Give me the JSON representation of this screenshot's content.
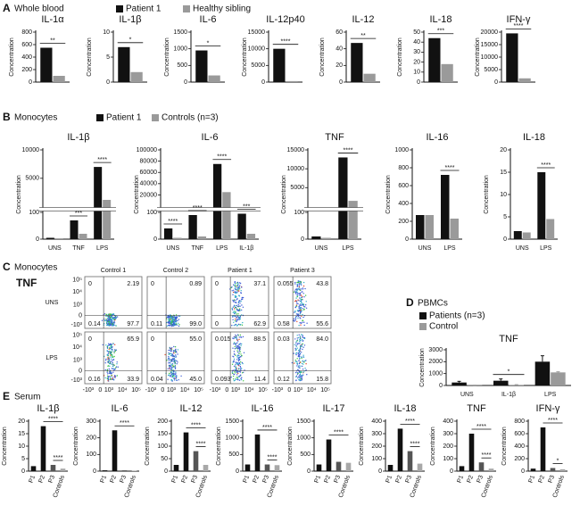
{
  "panels": [
    {
      "label": "A",
      "title": "Whole blood",
      "legend": [
        {
          "name": "Patient 1",
          "color": "#111111"
        },
        {
          "name": "Healthy sibling",
          "color": "#9a9a9a"
        }
      ]
    },
    {
      "label": "B",
      "title": "Monocytes",
      "legend": [
        {
          "name": "Patient 1",
          "color": "#111111"
        },
        {
          "name": "Controls (n=3)",
          "color": "#9a9a9a"
        }
      ]
    },
    {
      "label": "C",
      "title": "Monocytes"
    },
    {
      "label": "D",
      "title": "PBMCs"
    },
    {
      "label": "E",
      "title": "Serum"
    }
  ],
  "flow": {
    "marker": "TNF",
    "columns": [
      "Control 1",
      "Control 2",
      "Patient 1",
      "Patient 3"
    ],
    "rows": [
      "UNS",
      "LPS"
    ],
    "quadrants": [
      [
        [
          "0",
          "2.19",
          "0.14",
          "97.7"
        ],
        [
          "0",
          "0.89",
          "0.11",
          "99.0"
        ],
        [
          "0",
          "37.1",
          "0",
          "62.9"
        ],
        [
          "0.055",
          "43.8",
          "0.58",
          "55.6"
        ]
      ],
      [
        [
          "0",
          "65.9",
          "0.16",
          "33.9"
        ],
        [
          "0",
          "55.0",
          "0.04",
          "45.0"
        ],
        [
          "0.015",
          "88.5",
          "0.093",
          "11.4"
        ],
        [
          "0.03",
          "84.0",
          "0.12",
          "15.8"
        ]
      ]
    ],
    "yticks": [
      "10⁵",
      "10⁴",
      "10³",
      "0",
      "-10³"
    ],
    "xticks": [
      "-10³",
      "0",
      "10³",
      "10⁴",
      "10⁵"
    ]
  },
  "chart_data": [
    {
      "type": "bar",
      "title": "IL-1α",
      "ylabel": "Concentration",
      "categories": [
        null
      ],
      "series": [
        {
          "values": [
            550
          ]
        },
        {
          "values": [
            100
          ]
        }
      ],
      "ylim": [
        0,
        800
      ],
      "yticks": [
        0,
        200,
        400,
        600,
        800
      ],
      "annotations": [
        {
          "text": "**"
        }
      ]
    },
    {
      "type": "bar",
      "title": "IL-1β",
      "ylabel": "Concentration",
      "categories": [
        null
      ],
      "series": [
        {
          "values": [
            7
          ]
        },
        {
          "values": [
            2
          ]
        }
      ],
      "ylim": [
        0,
        10
      ],
      "yticks": [
        0,
        5,
        10
      ],
      "annotations": [
        {
          "text": "*"
        }
      ]
    },
    {
      "type": "bar",
      "title": "IL-6",
      "ylabel": "Concentration",
      "categories": [
        null
      ],
      "series": [
        {
          "values": [
            950
          ]
        },
        {
          "values": [
            200
          ]
        }
      ],
      "ylim": [
        0,
        1500
      ],
      "yticks": [
        0,
        500,
        1000,
        1500
      ],
      "annotations": [
        {
          "text": "*"
        }
      ]
    },
    {
      "type": "bar",
      "title": "IL-12p40",
      "ylabel": "Concentration",
      "categories": [
        null
      ],
      "series": [
        {
          "values": [
            10000
          ]
        },
        {
          "values": [
            300
          ]
        }
      ],
      "ylim": [
        0,
        15000
      ],
      "yticks": [
        0,
        5000,
        10000,
        15000
      ],
      "annotations": [
        {
          "text": "****"
        }
      ]
    },
    {
      "type": "bar",
      "title": "IL-12",
      "ylabel": "Concentration",
      "categories": [
        null
      ],
      "series": [
        {
          "values": [
            47
          ]
        },
        {
          "values": [
            10
          ]
        }
      ],
      "ylim": [
        0,
        60
      ],
      "yticks": [
        0,
        20,
        40,
        60
      ],
      "annotations": [
        {
          "text": "**"
        }
      ]
    },
    {
      "type": "bar",
      "title": "IL-18",
      "ylabel": "Concentration",
      "categories": [
        null
      ],
      "series": [
        {
          "values": [
            44
          ]
        },
        {
          "values": [
            18
          ]
        }
      ],
      "ylim": [
        0,
        50
      ],
      "yticks": [
        0,
        10,
        20,
        30,
        40,
        50
      ],
      "annotations": [
        {
          "text": "***"
        }
      ]
    },
    {
      "type": "bar",
      "title": "IFN-γ",
      "ylabel": "Concentration",
      "categories": [
        null
      ],
      "series": [
        {
          "values": [
            19500
          ]
        },
        {
          "values": [
            1500
          ]
        }
      ],
      "ylim": [
        0,
        20000
      ],
      "yticks": [
        0,
        5000,
        10000,
        15000,
        20000
      ],
      "annotations": [
        {
          "text": "****"
        }
      ]
    },
    {
      "type": "bar",
      "title": "IL-1β",
      "ylabel": "Concentration",
      "categories": [
        "UNS",
        "TNF",
        "LPS"
      ],
      "series": [
        {
          "values": [
            5,
            70,
            7000
          ]
        },
        {
          "values": [
            3,
            20,
            1200
          ]
        }
      ],
      "ylim": [
        0,
        10000
      ],
      "ybreak": 100,
      "yticks": [
        0,
        100,
        5000,
        10000
      ],
      "annotations": [
        {
          "text": "***",
          "at": "TNF"
        },
        {
          "text": "****",
          "at": "LPS"
        }
      ]
    },
    {
      "type": "bar",
      "title": "IL-6",
      "ylabel": "Concentration",
      "categories": [
        "UNS",
        "TNF",
        "LPS",
        "IL-1β"
      ],
      "series": [
        {
          "values": [
            40,
            90,
            75000,
            95
          ]
        },
        {
          "values": [
            5,
            10,
            25000,
            20
          ]
        }
      ],
      "ylim": [
        0,
        100000
      ],
      "ybreak": 100,
      "yticks": [
        0,
        100,
        20000,
        40000,
        60000,
        80000,
        100000
      ],
      "annotations": [
        {
          "text": "****",
          "at": "UNS"
        },
        {
          "text": "****",
          "at": "TNF"
        },
        {
          "text": "****",
          "at": "LPS"
        },
        {
          "text": "***",
          "at": "IL-1β"
        }
      ]
    },
    {
      "type": "bar",
      "title": "TNF",
      "ylabel": "Concentration",
      "categories": [
        "UNS",
        "LPS"
      ],
      "series": [
        {
          "values": [
            10,
            13000
          ]
        },
        {
          "values": [
            5,
            1500
          ]
        }
      ],
      "ylim": [
        0,
        15000
      ],
      "ybreak": 100,
      "yticks": [
        0,
        100,
        5000,
        10000,
        15000
      ],
      "annotations": [
        {
          "text": "****",
          "at": "LPS"
        }
      ]
    },
    {
      "type": "bar",
      "title": "IL-16",
      "ylabel": "Concentration",
      "categories": [
        "UNS",
        "LPS"
      ],
      "series": [
        {
          "values": [
            270,
            720
          ]
        },
        {
          "values": [
            270,
            230
          ]
        }
      ],
      "ylim": [
        0,
        1000
      ],
      "yticks": [
        0,
        200,
        400,
        600,
        800,
        1000
      ],
      "annotations": [
        {
          "text": "****",
          "at": "LPS"
        }
      ]
    },
    {
      "type": "bar",
      "title": "IL-18",
      "ylabel": "Concentration",
      "categories": [
        "UNS",
        "LPS"
      ],
      "series": [
        {
          "values": [
            1.8,
            15
          ]
        },
        {
          "values": [
            1.5,
            4.5
          ]
        }
      ],
      "ylim": [
        0,
        20
      ],
      "yticks": [
        0,
        5,
        10,
        15,
        20
      ],
      "annotations": [
        {
          "text": "****",
          "at": "LPS"
        }
      ]
    },
    {
      "type": "bar",
      "title": "TNF",
      "ylabel": "Concentration",
      "categories": [
        "UNS",
        "IL-1β",
        "LPS"
      ],
      "series": [
        {
          "name": "Patients (n=3)",
          "color": "#111111",
          "values": [
            250,
            400,
            2000
          ],
          "errors": [
            100,
            150,
            500
          ]
        },
        {
          "name": "Control",
          "color": "#9a9a9a",
          "values": [
            20,
            50,
            1100
          ],
          "errors": [
            10,
            20,
            50
          ]
        }
      ],
      "ylim": [
        0,
        3000
      ],
      "yticks": [
        0,
        1000,
        2000,
        3000
      ],
      "annotations": [
        {
          "text": "*",
          "at": "IL-1β"
        }
      ]
    },
    {
      "type": "bar",
      "title": "IL-1β",
      "ylabel": "Concentration",
      "categories": [
        "P1",
        "P2",
        "P3",
        "Controls"
      ],
      "values": [
        2,
        18,
        2.5,
        1
      ],
      "colors": [
        "#111111",
        "#111111",
        "#555555",
        "#a8a8a8"
      ],
      "ylim": [
        0,
        20
      ],
      "yticks": [
        0,
        5,
        10,
        15,
        20
      ],
      "annotations": [
        {
          "text": "****",
          "between": [
            "P2",
            "Controls"
          ]
        },
        {
          "text": "****",
          "between": [
            "P3",
            "Controls"
          ]
        }
      ]
    },
    {
      "type": "bar",
      "title": "IL-6",
      "ylabel": "Concentration",
      "categories": [
        "P1",
        "P2",
        "P3",
        "Controls"
      ],
      "values": [
        5,
        245,
        5,
        3
      ],
      "colors": [
        "#111111",
        "#111111",
        "#555555",
        "#a8a8a8"
      ],
      "ylim": [
        0,
        300
      ],
      "yticks": [
        0,
        100,
        200,
        300
      ],
      "annotations": [
        {
          "text": "****",
          "between": [
            "P2",
            "Controls"
          ]
        }
      ]
    },
    {
      "type": "bar",
      "title": "IL-12",
      "ylabel": "Concentration",
      "categories": [
        "P1",
        "P2",
        "P3",
        "Controls"
      ],
      "values": [
        25,
        155,
        80,
        25
      ],
      "colors": [
        "#111111",
        "#111111",
        "#555555",
        "#a8a8a8"
      ],
      "ylim": [
        0,
        200
      ],
      "yticks": [
        0,
        50,
        100,
        150,
        200
      ],
      "annotations": [
        {
          "text": "****",
          "between": [
            "P2",
            "Controls"
          ]
        },
        {
          "text": "****",
          "between": [
            "P3",
            "Controls"
          ]
        }
      ]
    },
    {
      "type": "bar",
      "title": "IL-16",
      "ylabel": "Concentration",
      "categories": [
        "P1",
        "P2",
        "P3",
        "Controls"
      ],
      "values": [
        200,
        1100,
        200,
        180
      ],
      "colors": [
        "#111111",
        "#111111",
        "#555555",
        "#a8a8a8"
      ],
      "ylim": [
        0,
        1500
      ],
      "yticks": [
        0,
        500,
        1000,
        1500
      ],
      "annotations": [
        {
          "text": "****",
          "between": [
            "P2",
            "Controls"
          ]
        },
        {
          "text": "****",
          "between": [
            "P3",
            "Controls"
          ]
        }
      ]
    },
    {
      "type": "bar",
      "title": "IL-17",
      "ylabel": "Concentration",
      "categories": [
        "P1",
        "P2",
        "P3",
        "Controls"
      ],
      "values": [
        200,
        950,
        280,
        250
      ],
      "colors": [
        "#111111",
        "#111111",
        "#555555",
        "#a8a8a8"
      ],
      "ylim": [
        0,
        1500
      ],
      "yticks": [
        0,
        500,
        1000,
        1500
      ],
      "annotations": [
        {
          "text": "****",
          "between": [
            "P2",
            "Controls"
          ]
        }
      ]
    },
    {
      "type": "bar",
      "title": "IL-18",
      "ylabel": "Concentration",
      "categories": [
        "P1",
        "P2",
        "P3",
        "Controls"
      ],
      "values": [
        50,
        340,
        160,
        60
      ],
      "colors": [
        "#111111",
        "#111111",
        "#555555",
        "#a8a8a8"
      ],
      "ylim": [
        0,
        400
      ],
      "yticks": [
        0,
        100,
        200,
        300,
        400
      ],
      "annotations": [
        {
          "text": "****",
          "between": [
            "P2",
            "Controls"
          ]
        },
        {
          "text": "****",
          "between": [
            "P3",
            "Controls"
          ]
        }
      ]
    },
    {
      "type": "bar",
      "title": "TNF",
      "ylabel": "Concentration",
      "categories": [
        "P1",
        "P2",
        "P3",
        "Controls"
      ],
      "values": [
        40,
        300,
        70,
        20
      ],
      "colors": [
        "#111111",
        "#111111",
        "#555555",
        "#a8a8a8"
      ],
      "ylim": [
        0,
        400
      ],
      "yticks": [
        0,
        100,
        200,
        300,
        400
      ],
      "annotations": [
        {
          "text": "****",
          "between": [
            "P2",
            "Controls"
          ]
        },
        {
          "text": "****",
          "between": [
            "P3",
            "Controls"
          ]
        }
      ]
    },
    {
      "type": "bar",
      "title": "IFN-γ",
      "ylabel": "Concentration",
      "categories": [
        "P1",
        "P2",
        "P3",
        "Controls"
      ],
      "values": [
        40,
        700,
        50,
        30
      ],
      "colors": [
        "#111111",
        "#111111",
        "#555555",
        "#a8a8a8"
      ],
      "ylim": [
        0,
        800
      ],
      "yticks": [
        0,
        200,
        400,
        600,
        800
      ],
      "annotations": [
        {
          "text": "****",
          "between": [
            "P2",
            "Controls"
          ]
        },
        {
          "text": "*",
          "between": [
            "P3",
            "Controls"
          ]
        }
      ]
    }
  ]
}
